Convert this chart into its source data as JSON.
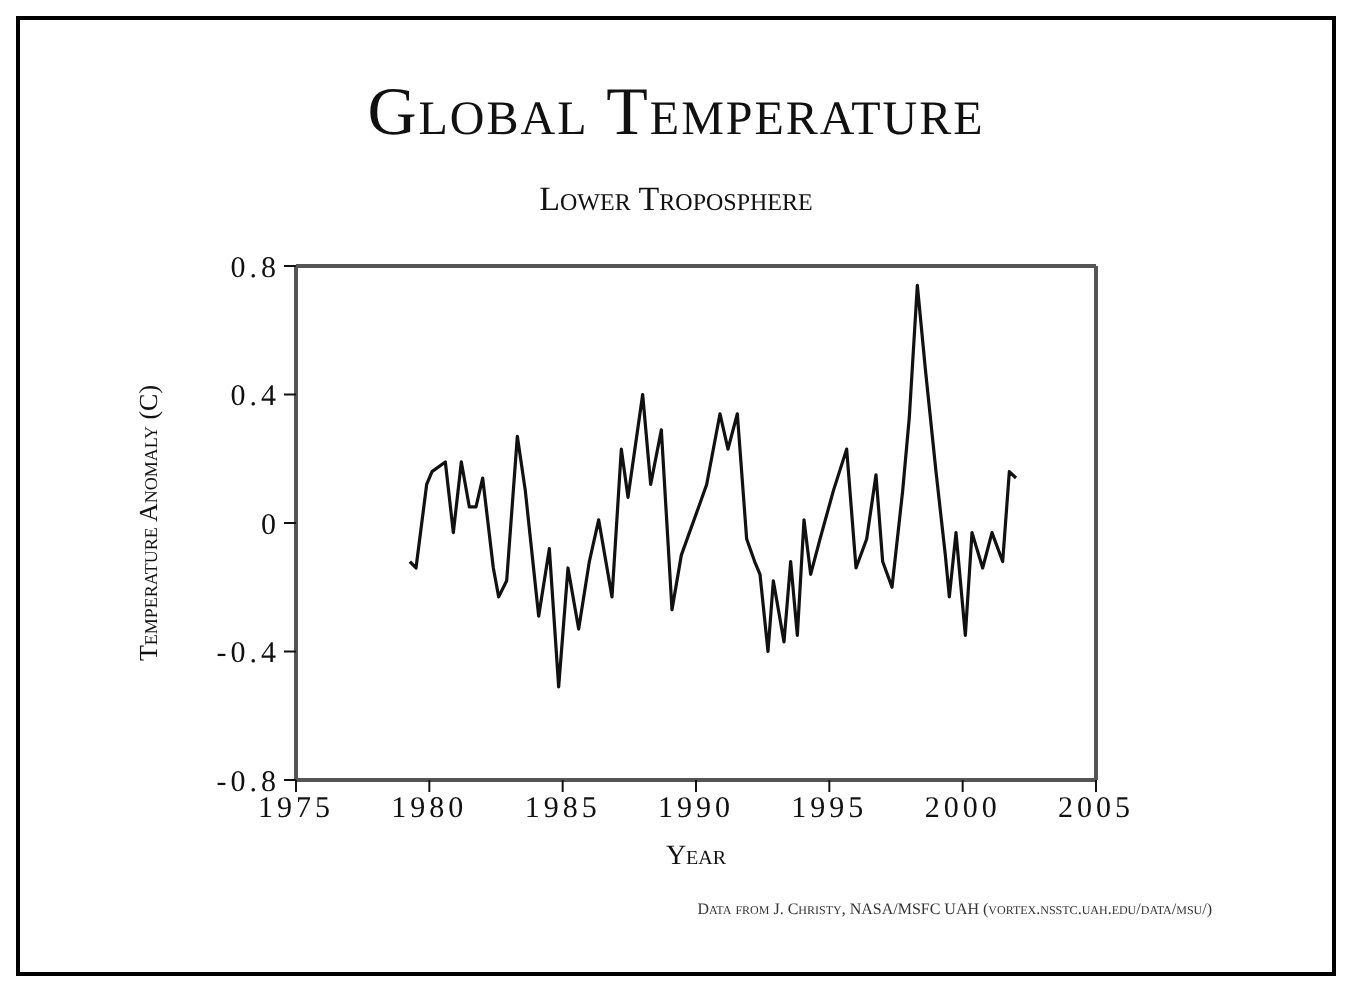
{
  "chart_data": {
    "type": "line",
    "title": "Global Temperature",
    "subtitle": "Lower Troposphere",
    "xlabel": "Year",
    "ylabel": "Temperature Anomaly (C)",
    "annotations": [
      "Data from J. Christy, NASA/MSFC UAH (vortex.nsstc.uah.edu/data/msu/)"
    ],
    "series": [
      {
        "color": "#111111",
        "x": [
          1979.27,
          1979.5,
          1979.9,
          1980.1,
          1980.6,
          1980.9,
          1981.2,
          1981.5,
          1981.75,
          1982.0,
          1982.4,
          1982.6,
          1982.9,
          1983.3,
          1983.6,
          1984.1,
          1984.5,
          1984.85,
          1985.2,
          1985.6,
          1986.0,
          1986.35,
          1986.85,
          1987.2,
          1987.45,
          1988.0,
          1988.3,
          1988.7,
          1989.1,
          1989.45,
          1990.1,
          1990.4,
          1990.9,
          1991.2,
          1991.55,
          1991.9,
          1992.2,
          1992.4,
          1992.7,
          1992.9,
          1993.3,
          1993.55,
          1993.8,
          1994.05,
          1994.3,
          1994.65,
          1995.15,
          1995.65,
          1996.0,
          1996.4,
          1996.75,
          1997.0,
          1997.35,
          1997.75,
          1998.0,
          1998.3,
          1998.6,
          1999.0,
          1999.35,
          1999.5,
          1999.75,
          2000.1,
          2000.35,
          2000.75,
          2001.1,
          2001.5,
          2001.75,
          2002.0
        ],
        "values": [
          -0.12,
          -0.14,
          0.12,
          0.16,
          0.19,
          -0.03,
          0.19,
          0.05,
          0.05,
          0.14,
          -0.14,
          -0.23,
          -0.18,
          0.27,
          0.1,
          -0.29,
          -0.08,
          -0.51,
          -0.14,
          -0.33,
          -0.12,
          0.01,
          -0.23,
          0.23,
          0.08,
          0.4,
          0.12,
          0.29,
          -0.27,
          -0.1,
          0.05,
          0.12,
          0.34,
          0.23,
          0.34,
          -0.05,
          -0.12,
          -0.16,
          -0.4,
          -0.18,
          -0.37,
          -0.12,
          -0.35,
          0.01,
          -0.16,
          -0.05,
          0.1,
          0.23,
          -0.14,
          -0.05,
          0.15,
          -0.12,
          -0.2,
          0.1,
          0.33,
          0.74,
          0.48,
          0.16,
          -0.1,
          -0.23,
          -0.03,
          -0.35,
          -0.03,
          -0.14,
          -0.03,
          -0.12,
          0.16,
          0.14
        ]
      }
    ],
    "xlim": [
      1975,
      2005
    ],
    "xticks": [
      1975,
      1980,
      1985,
      1990,
      1995,
      2000,
      2005
    ],
    "ylim": [
      -0.8,
      0.8
    ],
    "yticks": [
      -0.8,
      -0.4,
      0,
      0.4,
      0.8
    ],
    "marker": "none",
    "line_style": "solid"
  }
}
